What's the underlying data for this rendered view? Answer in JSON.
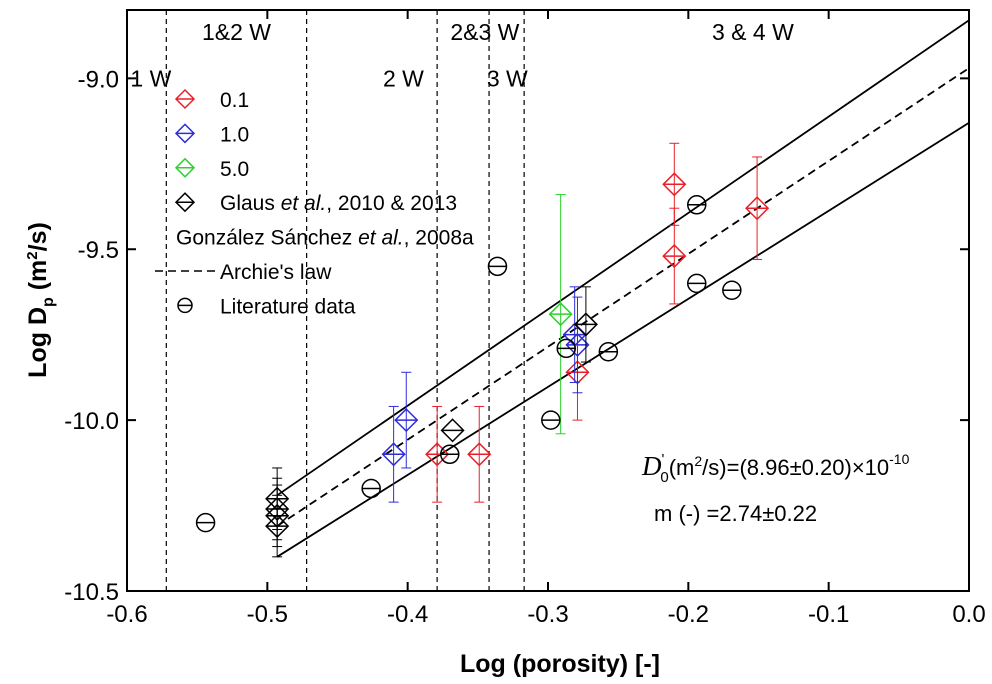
{
  "chart_data": {
    "type": "scatter",
    "xlabel": "Log (porosity) [-]",
    "ylabel_main": "Log D",
    "ylabel_sub": "p",
    "ylabel_unit_pre": " (m",
    "ylabel_unit_sup": "2",
    "ylabel_unit_post": "/s)",
    "xlim": [
      -0.6,
      0.0
    ],
    "ylim": [
      -10.5,
      -8.8
    ],
    "x_ticks": [
      -0.6,
      -0.5,
      -0.4,
      -0.3,
      -0.2,
      -0.1,
      0.0
    ],
    "x_tick_labels": [
      "-0.6",
      "-0.5",
      "-0.4",
      "-0.3",
      "-0.2",
      "-0.1",
      "0.0"
    ],
    "y_ticks": [
      -10.5,
      -10.0,
      -9.5,
      -9.0
    ],
    "y_tick_labels": [
      "-10.5",
      "-10.0",
      "-9.5",
      "-9.0"
    ],
    "grid": false,
    "legend_position": "top-left",
    "vertical_lines": [
      -0.572,
      -0.472,
      -0.379,
      -0.342,
      -0.317
    ],
    "regions": [
      {
        "label": "1&2 W",
        "x": -0.522,
        "y": -8.865
      },
      {
        "label": "2&3 W",
        "x": -0.345,
        "y": -8.865
      },
      {
        "label": "3 & 4 W",
        "x": -0.154,
        "y": -8.865
      },
      {
        "label": "1 W",
        "x": -0.583,
        "y": -9.0
      },
      {
        "label": "2 W",
        "x": -0.403,
        "y": -9.0
      },
      {
        "label": "3 W",
        "x": -0.329,
        "y": -9.0
      }
    ],
    "series": [
      {
        "name": "0.1",
        "color": "#e8202a",
        "marker": "diamond",
        "points": [
          {
            "x": -0.379,
            "y": -10.1,
            "err": 0.14
          },
          {
            "x": -0.349,
            "y": -10.1,
            "err": 0.14
          },
          {
            "x": -0.279,
            "y": -9.86,
            "err": 0.14
          },
          {
            "x": -0.21,
            "y": -9.52,
            "err": 0.14
          },
          {
            "x": -0.21,
            "y": -9.31,
            "err": 0.12
          },
          {
            "x": -0.151,
            "y": -9.38,
            "err": 0.15
          }
        ]
      },
      {
        "name": "1.0",
        "color": "#2d2dd8",
        "marker": "diamond",
        "points": [
          {
            "x": -0.41,
            "y": -10.1,
            "err": 0.14
          },
          {
            "x": -0.401,
            "y": -10.0,
            "err": 0.14
          },
          {
            "x": -0.281,
            "y": -9.75,
            "err": 0.14
          },
          {
            "x": -0.279,
            "y": -9.78,
            "err": 0.14
          }
        ]
      },
      {
        "name": "5.0",
        "color": "#2fd02f",
        "marker": "diamond",
        "points": [
          {
            "x": -0.291,
            "y": -9.69,
            "err": 0.35
          }
        ]
      },
      {
        "name": "Glaus et al., 2010 & 2013",
        "color": "#000000",
        "marker": "diamond",
        "points": [
          {
            "x": -0.493,
            "y": -10.23,
            "err": 0.09
          },
          {
            "x": -0.493,
            "y": -10.26,
            "err": 0.09
          },
          {
            "x": -0.493,
            "y": -10.28,
            "err": 0.09
          },
          {
            "x": -0.493,
            "y": -10.31,
            "err": 0.09
          },
          {
            "x": -0.368,
            "y": -10.03,
            "err": 0
          },
          {
            "x": -0.273,
            "y": -9.72,
            "err": 0.11
          }
        ]
      },
      {
        "name": "Literature data",
        "color": "#000000",
        "marker": "circle",
        "points": [
          {
            "x": -0.544,
            "y": -10.3
          },
          {
            "x": -0.426,
            "y": -10.2
          },
          {
            "x": -0.37,
            "y": -10.1
          },
          {
            "x": -0.336,
            "y": -9.55
          },
          {
            "x": -0.298,
            "y": -10.0
          },
          {
            "x": -0.287,
            "y": -9.79
          },
          {
            "x": -0.257,
            "y": -9.8
          },
          {
            "x": -0.194,
            "y": -9.37
          },
          {
            "x": -0.194,
            "y": -9.6
          },
          {
            "x": -0.169,
            "y": -9.62
          }
        ]
      }
    ],
    "fit_lines": [
      {
        "name": "Archie's law",
        "style": "dashed",
        "x": [
          -0.493,
          0.0
        ],
        "y": [
          -10.31,
          -8.97
        ]
      },
      {
        "name": "upper bound",
        "style": "solid",
        "x": [
          -0.493,
          0.0
        ],
        "y": [
          -10.22,
          -8.83
        ]
      },
      {
        "name": "lower bound",
        "style": "solid",
        "x": [
          -0.493,
          0.0
        ],
        "y": [
          -10.4,
          -9.13
        ]
      }
    ],
    "legend": [
      {
        "label": "0.1",
        "symbol": "diamond",
        "color": "#e8202a"
      },
      {
        "label": "1.0",
        "symbol": "diamond",
        "color": "#2d2dd8"
      },
      {
        "label": "5.0",
        "symbol": "diamond",
        "color": "#2fd02f"
      },
      {
        "label_parts": [
          {
            "t": "Glaus "
          },
          {
            "t": "et al.",
            "i": true
          },
          {
            "t": ", 2010 & 2013"
          }
        ],
        "symbol": "diamond",
        "color": "#000000"
      },
      {
        "label_parts": [
          {
            "t": "González Sánchez "
          },
          {
            "t": "et al.",
            "i": true
          },
          {
            "t": ", 2008a"
          }
        ],
        "symbol": "none",
        "color": "#000000"
      },
      {
        "label": "Archie's law",
        "symbol": "dash",
        "color": "#000000"
      },
      {
        "label": "Literature data",
        "symbol": "circle",
        "color": "#000000"
      }
    ],
    "annotation": {
      "d0_symbol": "D",
      "d0_sup": "'",
      "d0_sub": "0",
      "d0_unit_pre": "(m",
      "d0_unit_sup": "2",
      "d0_unit_post": "/s)=(8.96±0.20)×10",
      "d0_exp": "-10",
      "m_text": "m (-) =2.74±0.22"
    }
  }
}
